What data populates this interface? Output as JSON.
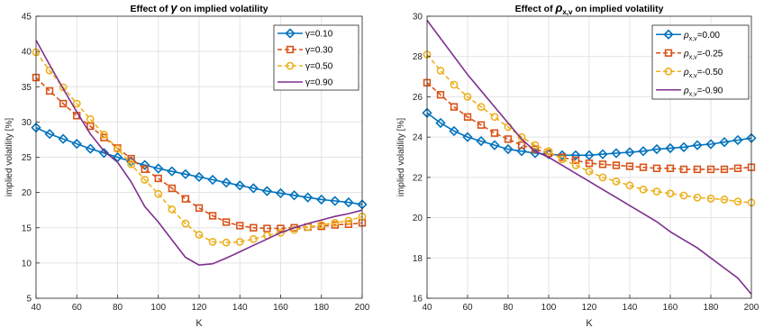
{
  "chart_data": [
    {
      "type": "line",
      "title_prefix": "Effect of ",
      "title_symbol": "γ",
      "title_suffix": " on implied volatility",
      "xlabel": "K",
      "ylabel": "implied volatility [%]",
      "xlim": [
        40,
        200
      ],
      "ylim": [
        5,
        45
      ],
      "xticks": [
        40,
        60,
        80,
        100,
        120,
        140,
        160,
        180,
        200
      ],
      "yticks": [
        5,
        10,
        15,
        20,
        25,
        30,
        35,
        40,
        45
      ],
      "grid": true,
      "legend_position": "top-right",
      "x": [
        40,
        46.67,
        53.33,
        60,
        66.67,
        73.33,
        80,
        86.67,
        93.33,
        100,
        106.67,
        113.33,
        120,
        126.67,
        133.33,
        140,
        146.67,
        153.33,
        160,
        166.67,
        173.33,
        180,
        186.67,
        193.33,
        200
      ],
      "series": [
        {
          "name": "γ=0.10",
          "color": "#0072BD",
          "marker": "diamond",
          "values": [
            29.2,
            28.3,
            27.6,
            26.9,
            26.2,
            25.6,
            25.0,
            24.4,
            23.9,
            23.4,
            23.0,
            22.6,
            22.2,
            21.8,
            21.4,
            21.0,
            20.6,
            20.2,
            19.9,
            19.6,
            19.3,
            19.0,
            18.8,
            18.6,
            18.3
          ]
        },
        {
          "name": "γ=0.30",
          "color": "#D95319",
          "marker": "square",
          "values": [
            36.3,
            34.4,
            32.6,
            30.9,
            29.4,
            27.8,
            26.3,
            24.8,
            23.3,
            22.0,
            20.6,
            19.1,
            17.8,
            16.7,
            15.8,
            15.3,
            15.0,
            14.9,
            14.9,
            15.0,
            15.1,
            15.2,
            15.4,
            15.5,
            15.7
          ]
        },
        {
          "name": "γ=0.50",
          "color": "#EDB120",
          "marker": "circle",
          "values": [
            39.9,
            37.3,
            34.9,
            32.6,
            30.4,
            28.2,
            26.2,
            24.0,
            21.8,
            19.8,
            17.6,
            15.6,
            14.0,
            13.0,
            12.9,
            13.0,
            13.4,
            13.9,
            14.3,
            14.7,
            15.1,
            15.4,
            15.7,
            16.0,
            16.6
          ]
        },
        {
          "name": "γ=0.90",
          "color": "#7E2F8E",
          "marker": "none",
          "values": [
            41.6,
            38.1,
            34.7,
            31.4,
            28.3,
            25.9,
            24.3,
            21.5,
            18.0,
            15.8,
            13.3,
            10.8,
            9.7,
            9.9,
            10.7,
            11.6,
            12.5,
            13.4,
            14.3,
            15.0,
            15.6,
            16.1,
            16.6,
            17.0,
            17.5
          ]
        }
      ]
    },
    {
      "type": "line",
      "title_prefix": "Effect of ",
      "title_symbol": "ρ",
      "title_sub": "x,v",
      "title_suffix": " on implied volatility",
      "xlabel": "K",
      "ylabel": "implied volatility [%]",
      "xlim": [
        40,
        200
      ],
      "ylim": [
        16,
        30
      ],
      "xticks": [
        40,
        60,
        80,
        100,
        120,
        140,
        160,
        180,
        200
      ],
      "yticks": [
        16,
        18,
        20,
        22,
        24,
        26,
        28,
        30
      ],
      "grid": true,
      "legend_position": "top-right",
      "x": [
        40,
        46.67,
        53.33,
        60,
        66.67,
        73.33,
        80,
        86.67,
        93.33,
        100,
        106.67,
        113.33,
        120,
        126.67,
        133.33,
        140,
        146.67,
        153.33,
        160,
        166.67,
        173.33,
        180,
        186.67,
        193.33,
        200
      ],
      "series": [
        {
          "name_symbol": "ρ",
          "name_sub": "x,v",
          "name_value": "=0.00",
          "color": "#0072BD",
          "marker": "diamond",
          "values": [
            25.2,
            24.7,
            24.3,
            24.0,
            23.8,
            23.6,
            23.4,
            23.3,
            23.2,
            23.15,
            23.1,
            23.1,
            23.1,
            23.15,
            23.2,
            23.25,
            23.3,
            23.4,
            23.45,
            23.5,
            23.6,
            23.65,
            23.75,
            23.85,
            23.95
          ]
        },
        {
          "name_symbol": "ρ",
          "name_sub": "x,v",
          "name_value": "=-0.25",
          "color": "#D95319",
          "marker": "square",
          "values": [
            26.7,
            26.1,
            25.5,
            25.0,
            24.6,
            24.2,
            23.9,
            23.6,
            23.4,
            23.2,
            23.0,
            22.85,
            22.7,
            22.65,
            22.6,
            22.55,
            22.5,
            22.45,
            22.45,
            22.4,
            22.4,
            22.4,
            22.4,
            22.45,
            22.5
          ]
        },
        {
          "name_symbol": "ρ",
          "name_sub": "x,v",
          "name_value": "=-0.50",
          "color": "#EDB120",
          "marker": "circle",
          "values": [
            28.1,
            27.3,
            26.6,
            26.0,
            25.5,
            25.0,
            24.5,
            24.0,
            23.6,
            23.3,
            22.9,
            22.6,
            22.3,
            22.0,
            21.8,
            21.6,
            21.4,
            21.3,
            21.2,
            21.1,
            21.0,
            20.95,
            20.9,
            20.8,
            20.75
          ]
        },
        {
          "name_symbol": "ρ",
          "name_sub": "x,v",
          "name_value": "=-0.90",
          "color": "#7E2F8E",
          "marker": "none",
          "values": [
            29.8,
            28.9,
            28.0,
            27.1,
            26.3,
            25.5,
            24.7,
            23.9,
            23.3,
            23.0,
            22.6,
            22.2,
            21.8,
            21.4,
            21.0,
            20.6,
            20.2,
            19.8,
            19.3,
            18.9,
            18.5,
            18.0,
            17.5,
            17.0,
            16.2
          ]
        }
      ]
    }
  ]
}
